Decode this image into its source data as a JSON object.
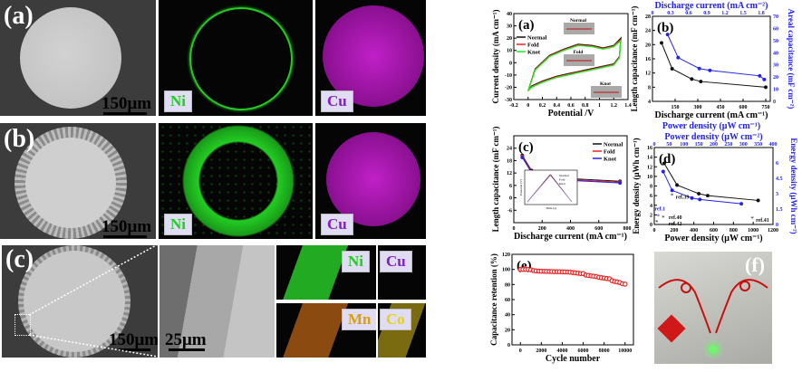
{
  "figure": {
    "left_panels": {
      "row_labels": [
        "(a)",
        "(b)",
        "(c)"
      ],
      "scale_bars": {
        "large": "150μm",
        "zoom": "25μm"
      },
      "elements": {
        "ni": "Ni",
        "cu": "Cu",
        "mn": "Mn",
        "co": "Co"
      }
    },
    "colors": {
      "ni": "#22cc22",
      "cu": "#b020c8",
      "mn": "#d07010",
      "co": "#c8b020",
      "black": "#111111",
      "red": "#ee2222",
      "green": "#22ee22",
      "blue": "#2222ee"
    },
    "panel_f_label": "(f)"
  },
  "chart_data": [
    {
      "id": "a",
      "type": "line",
      "label": "(a)",
      "xlabel": "Potential /V",
      "ylabel": "Current density (mA cm⁻¹)",
      "xlim": [
        -0.2,
        1.4
      ],
      "ylim": [
        -30,
        40
      ],
      "xticks": [
        -0.2,
        0,
        0.2,
        0.4,
        0.6,
        0.8,
        1.0,
        1.2,
        1.4
      ],
      "yticks": [
        -30,
        -20,
        -10,
        0,
        10,
        20,
        30,
        40
      ],
      "inset_labels": [
        "Normal",
        "Fold",
        "Knot"
      ],
      "series": [
        {
          "name": "Normal",
          "color": "#111111",
          "x": [
            0,
            0.1,
            0.3,
            0.5,
            0.7,
            0.9,
            1.05,
            1.2,
            1.3,
            1.28,
            1.2,
            1.0,
            0.8,
            0.6,
            0.4,
            0.2,
            0.05,
            0
          ],
          "y": [
            -23,
            -5,
            6,
            11,
            15,
            14,
            12,
            14,
            20,
            5,
            -1,
            -3.5,
            -6,
            -8.5,
            -11,
            -15,
            -19,
            -23
          ]
        },
        {
          "name": "Fold",
          "color": "#ee2222",
          "x": [
            0,
            0.1,
            0.3,
            0.5,
            0.7,
            0.9,
            1.05,
            1.2,
            1.3,
            1.28,
            1.2,
            1.0,
            0.8,
            0.6,
            0.4,
            0.2,
            0.05,
            0
          ],
          "y": [
            -23,
            -5.5,
            5.5,
            10.5,
            14.5,
            13.5,
            11.5,
            13.5,
            19,
            4.5,
            -1.5,
            -4,
            -6.5,
            -9,
            -11.5,
            -15.5,
            -19.5,
            -23
          ]
        },
        {
          "name": "Knot",
          "color": "#22ee22",
          "x": [
            0,
            0.1,
            0.3,
            0.5,
            0.7,
            0.9,
            1.05,
            1.2,
            1.3,
            1.28,
            1.2,
            1.0,
            0.8,
            0.6,
            0.4,
            0.2,
            0.05,
            0
          ],
          "y": [
            -23,
            -6,
            5,
            10,
            14,
            13,
            11,
            13,
            18,
            4,
            -2,
            -4.5,
            -7,
            -9.5,
            -12,
            -16,
            -20,
            -23
          ]
        }
      ]
    },
    {
      "id": "b",
      "type": "line",
      "label": "(b)",
      "xlabel": "Discharge current (mA cm⁻¹)",
      "ylabel": "Length capacitance (mF cm⁻¹)",
      "x2label": "Discharge current (mA cm⁻²)",
      "y2label": "Areal capacitance (mF cm⁻²)",
      "extra_label": "Power density (μW cm⁻¹)",
      "xlim": [
        0,
        780
      ],
      "ylim": [
        4,
        28
      ],
      "y2lim": [
        0,
        70
      ],
      "x2lim": [
        0,
        1.95
      ],
      "xticks": [
        150,
        300,
        450,
        600,
        750
      ],
      "yticks": [
        4,
        8,
        12,
        16,
        20,
        24,
        28
      ],
      "x2ticks": [
        0.0,
        0.3,
        0.6,
        0.9,
        1.2,
        1.5,
        1.8
      ],
      "y2ticks": [
        0,
        10,
        20,
        30,
        40,
        50,
        60,
        70
      ],
      "series": [
        {
          "name": "Length capacitance",
          "axis": "left",
          "color": "#111111",
          "x": [
            60,
            130,
            260,
            320,
            750
          ],
          "y": [
            20.5,
            13.2,
            10.3,
            9.6,
            8.0
          ]
        },
        {
          "name": "Areal capacitance",
          "axis": "right",
          "color": "#2222ee",
          "x": [
            100,
            170,
            310,
            380,
            710,
            740
          ],
          "y": [
            55,
            36,
            27,
            25.5,
            21,
            18
          ]
        }
      ]
    },
    {
      "id": "c",
      "type": "line",
      "label": "(c)",
      "xlabel": "Discharge current (mA cm⁻¹)",
      "ylabel": "Length capacitance (mF cm⁻¹)",
      "xlim": [
        0,
        800
      ],
      "ylim": [
        -12,
        30
      ],
      "xticks": [
        0,
        200,
        400,
        600,
        800
      ],
      "yticks": [
        -6,
        0,
        6,
        12,
        18,
        24
      ],
      "inset": {
        "xlabel": "Time (s)",
        "ylabel": "Potential (V)",
        "legend": [
          "Normal",
          "Fold",
          "Knot"
        ]
      },
      "series": [
        {
          "name": "Normal",
          "color": "#111111",
          "x": [
            60,
            125,
            260,
            320,
            750
          ],
          "y": [
            20.5,
            13.2,
            10.2,
            9.6,
            8.0
          ]
        },
        {
          "name": "Fold",
          "color": "#ee2222",
          "x": [
            60,
            125,
            260,
            320,
            750
          ],
          "y": [
            20.0,
            12.7,
            9.7,
            9.1,
            7.6
          ]
        },
        {
          "name": "Knot",
          "color": "#2222ee",
          "x": [
            60,
            125,
            260,
            320,
            750
          ],
          "y": [
            19.5,
            12.2,
            9.2,
            8.7,
            7.2
          ]
        }
      ]
    },
    {
      "id": "d",
      "type": "scatter",
      "label": "(d)",
      "xlabel": "Power density (μW cm⁻¹)",
      "ylabel": "Energy density (μWh cm⁻¹)",
      "x2label": "Power density (μW cm⁻²)",
      "y2label": "Energy density (μWh cm⁻²)",
      "xlim": [
        0,
        1200
      ],
      "ylim": [
        0,
        16
      ],
      "x2lim": [
        0,
        400
      ],
      "y2lim": [
        0,
        7.5
      ],
      "xticks": [
        0,
        200,
        400,
        600,
        800,
        1000,
        1200
      ],
      "yticks": [
        0,
        2,
        4,
        6,
        8,
        10,
        12,
        14,
        16
      ],
      "x2ticks": [
        0,
        50,
        100,
        150,
        200,
        250,
        300,
        350,
        400
      ],
      "y2ticks": [
        0.0,
        1.5,
        3.0,
        4.5,
        6.0
      ],
      "series": [
        {
          "name": "Length energy density",
          "color": "#111111",
          "x": [
            100,
            230,
            450,
            540,
            1050
          ],
          "y": [
            12.7,
            8.2,
            6.4,
            6.0,
            5.0
          ]
        },
        {
          "name": "Areal energy density",
          "color": "#2222ee",
          "x": [
            90,
            180,
            380,
            460,
            880
          ],
          "y": [
            11.0,
            7.1,
            5.5,
            5.2,
            4.3
          ]
        }
      ],
      "references": [
        {
          "name": "ref.39",
          "x": 180,
          "y": 5.9,
          "color": "#111111"
        },
        {
          "name": "ref.1",
          "x": 40,
          "y": 1.6,
          "color": "#2222ee"
        },
        {
          "name": "ref.40",
          "x": 90,
          "y": 1.3,
          "color": "#111111"
        },
        {
          "name": "ref.42",
          "x": 25,
          "y": 0.4,
          "color": "#111111"
        },
        {
          "name": "ref.41",
          "x": 990,
          "y": 1.1,
          "color": "#111111"
        }
      ]
    },
    {
      "id": "e",
      "type": "scatter",
      "label": "(e)",
      "xlabel": "Cycle number",
      "ylabel": "Capacitance retention (%)",
      "xlim": [
        -800,
        10800
      ],
      "ylim": [
        0,
        120
      ],
      "xticks": [
        0,
        2000,
        4000,
        6000,
        8000,
        10000
      ],
      "yticks": [
        0,
        20,
        40,
        60,
        80,
        100,
        120
      ],
      "series": [
        {
          "name": "Retention",
          "color": "#ee2222",
          "x": [
            0,
            250,
            500,
            750,
            1000,
            1250,
            1500,
            1750,
            2000,
            2250,
            2500,
            2750,
            3000,
            3250,
            3500,
            3750,
            4000,
            4250,
            4500,
            4750,
            5000,
            5250,
            5500,
            5750,
            6000,
            6250,
            6500,
            6750,
            7000,
            7250,
            7500,
            7750,
            8000,
            8250,
            8500,
            8750,
            9000,
            9250,
            9500,
            9750,
            10000
          ],
          "y": [
            100,
            100,
            100,
            100,
            99.5,
            98.5,
            98,
            97.8,
            97.6,
            97.5,
            97.4,
            97.3,
            97.2,
            97,
            97,
            96.9,
            96.8,
            96.7,
            96.6,
            96.4,
            95.8,
            95.5,
            95,
            94.5,
            94.5,
            92.5,
            92,
            91.5,
            91,
            90.5,
            89.5,
            89,
            88.5,
            88,
            87.5,
            85,
            84,
            83.5,
            82.5,
            81,
            80.5
          ]
        }
      ]
    }
  ]
}
